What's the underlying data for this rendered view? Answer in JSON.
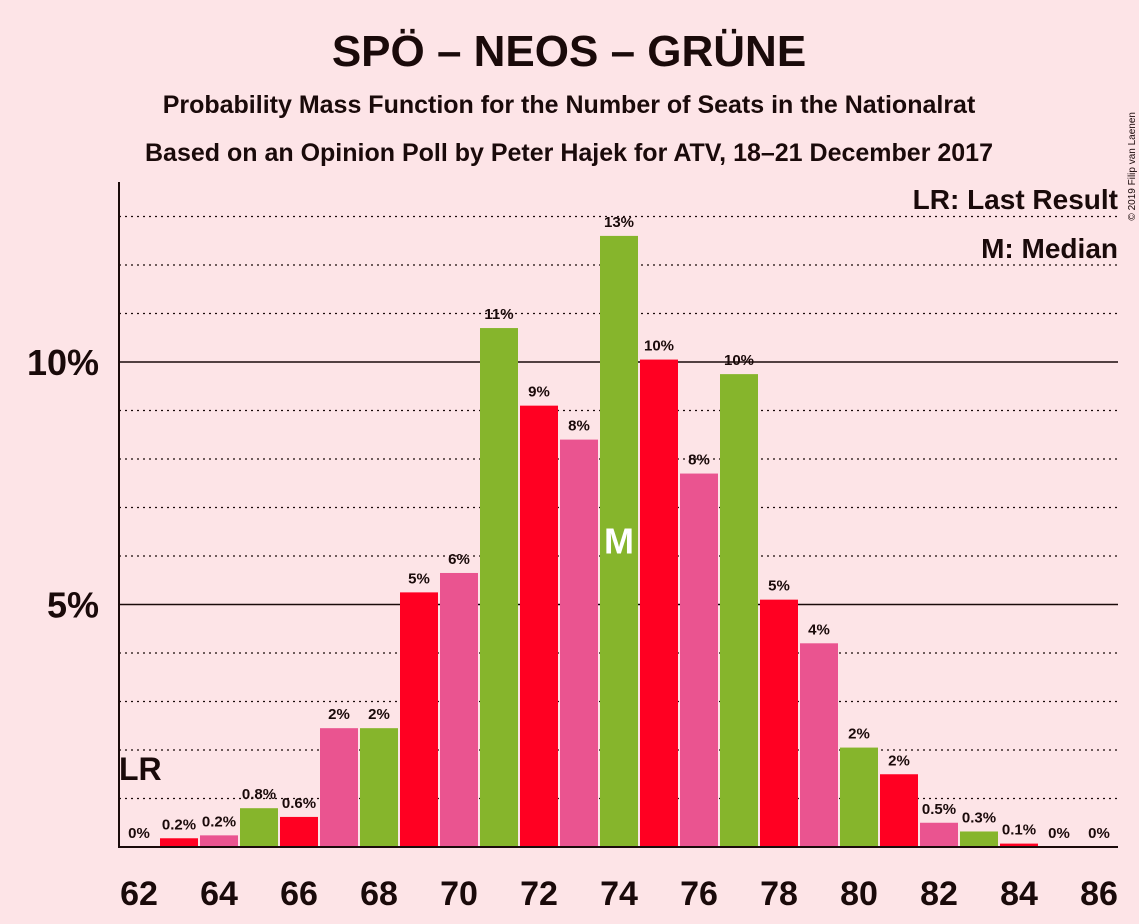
{
  "chart_data": {
    "type": "bar",
    "title": "SPÖ – NEOS – GRÜNE",
    "subtitle1": "Probability Mass Function for the Number of Seats in the Nationalrat",
    "subtitle2": "Based on an Opinion Poll by Peter Hajek for ATV, 18–21 December 2017",
    "copyright": "© 2019 Filip van Laenen",
    "legend": {
      "last_result": "LR: Last Result",
      "median": "M: Median"
    },
    "x": [
      62,
      63,
      64,
      65,
      66,
      67,
      68,
      69,
      70,
      71,
      72,
      73,
      74,
      75,
      76,
      77,
      78,
      79,
      80,
      81,
      82,
      83,
      84,
      85,
      86
    ],
    "values": [
      0,
      0.18,
      0.24,
      0.8,
      0.62,
      2.45,
      2.45,
      5.25,
      5.65,
      10.7,
      9.1,
      8.4,
      12.6,
      10.05,
      7.7,
      9.75,
      5.1,
      4.2,
      2.05,
      1.5,
      0.5,
      0.32,
      0.07,
      0,
      0
    ],
    "labels": [
      "0%",
      "0.2%",
      "0.2%",
      "0.8%",
      "0.6%",
      "2%",
      "2%",
      "5%",
      "6%",
      "11%",
      "9%",
      "8%",
      "13%",
      "10%",
      "8%",
      "10%",
      "5%",
      "4%",
      "2%",
      "2%",
      "0.5%",
      "0.3%",
      "0.1%",
      "0%",
      "0%"
    ],
    "colors": [
      "#ff0022",
      "#ff0022",
      "#ea5490",
      "#86b52c",
      "#ff0022",
      "#ea5490",
      "#86b52c",
      "#ff0022",
      "#ea5490",
      "#86b52c",
      "#ff0022",
      "#ea5490",
      "#86b52c",
      "#ff0022",
      "#ea5490",
      "#86b52c",
      "#ff0022",
      "#ea5490",
      "#86b52c",
      "#ff0022",
      "#ea5490",
      "#86b52c",
      "#ff0022",
      "#ea5490",
      "#86b52c"
    ],
    "xticks": [
      62,
      64,
      66,
      68,
      70,
      72,
      74,
      76,
      78,
      80,
      82,
      84,
      86
    ],
    "yticks": [
      {
        "value": 5,
        "label": "5%"
      },
      {
        "value": 10,
        "label": "10%"
      }
    ],
    "ylim": [
      0,
      13.7
    ],
    "last_result_seat": 62,
    "last_result_label": "LR",
    "median_seat": 74,
    "median_label": "M",
    "grid": "dotted every 1%, solid at 5% and 10%"
  }
}
